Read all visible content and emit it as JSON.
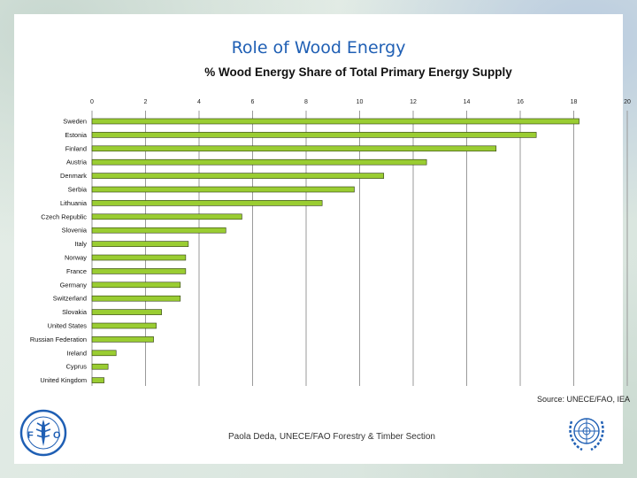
{
  "slide": {
    "title": "Role of Wood Energy",
    "source": "Source: UNECE/FAO, IEA",
    "footer": "Paola Deda, UNECE/FAO Forestry & Timber Section"
  },
  "logos": {
    "left": {
      "icon": "fao-logo-icon",
      "text": "FAO"
    },
    "right": {
      "icon": "un-emblem-icon"
    }
  },
  "colors": {
    "title": "#1f5fb4",
    "bar": "#9acd32",
    "bar_stroke": "#2e3a12",
    "grid": "#9a9a9a"
  },
  "chart_data": {
    "type": "bar",
    "orientation": "horizontal",
    "title": "% Wood Energy Share of Total Primary Energy Supply",
    "xlabel": "",
    "ylabel": "",
    "xlim": [
      0,
      20
    ],
    "xticks": [
      0,
      2,
      4,
      6,
      8,
      10,
      12,
      14,
      16,
      18,
      20
    ],
    "xtick_labels": [
      "0",
      "2",
      "4",
      "6",
      "8",
      "10",
      "12",
      "14",
      "16",
      "18",
      "20"
    ],
    "grid": true,
    "categories": [
      "Sweden",
      "Estonia",
      "Finland",
      "Austria",
      "Denmark",
      "Serbia",
      "Lithuania",
      "Czech Republic",
      "Slovenia",
      "Italy",
      "Norway",
      "France",
      "Germany",
      "Switzerland",
      "Slovakia",
      "United States",
      "Russian Federation",
      "Ireland",
      "Cyprus",
      "United Kingdom"
    ],
    "values": [
      18.2,
      16.6,
      15.1,
      12.5,
      10.9,
      9.8,
      8.6,
      5.6,
      5.0,
      3.6,
      3.5,
      3.5,
      3.3,
      3.3,
      2.6,
      2.4,
      2.3,
      0.9,
      0.6,
      0.45
    ]
  }
}
